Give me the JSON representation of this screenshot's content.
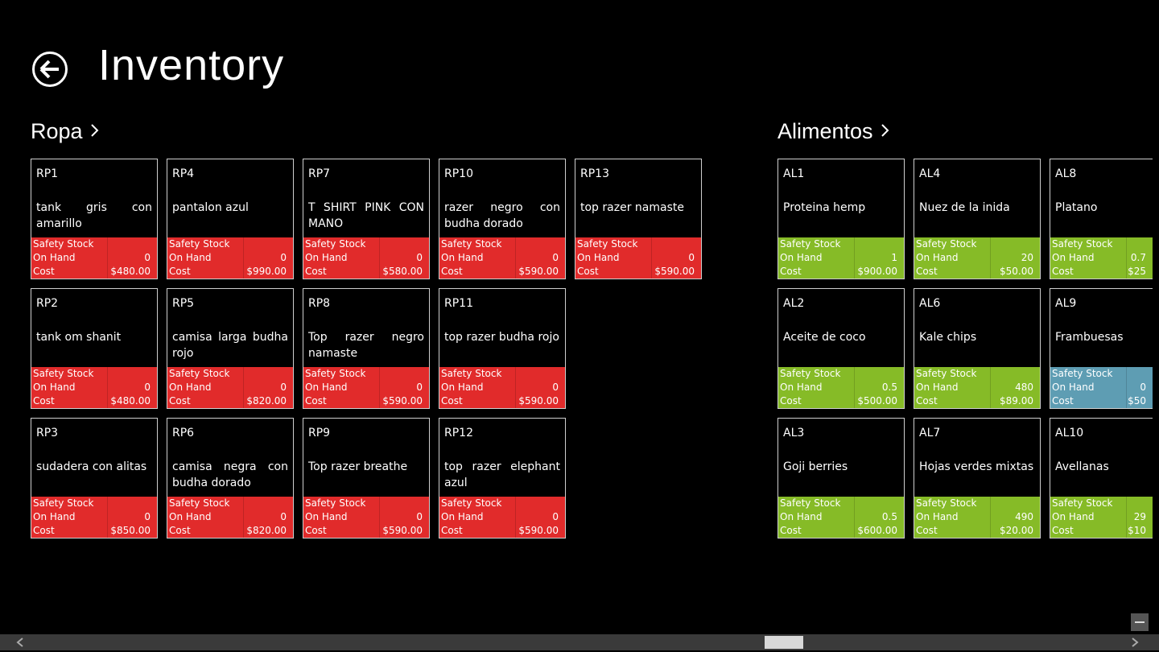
{
  "header": {
    "title": "Inventory"
  },
  "labels": [
    "Safety Stock",
    "On Hand",
    "Cost"
  ],
  "groups": [
    {
      "title": "Ropa",
      "items": [
        {
          "code": "RP1",
          "name": "tank gris con amarillo",
          "on_hand": 0,
          "cost": "$480.00",
          "color": "#e12b2b"
        },
        {
          "code": "RP2",
          "name": "tank om shanit",
          "on_hand": 0,
          "cost": "$480.00",
          "color": "#e12b2b"
        },
        {
          "code": "RP3",
          "name": "sudadera con alitas",
          "on_hand": 0,
          "cost": "$850.00",
          "color": "#e12b2b"
        },
        {
          "code": "RP4",
          "name": "pantalon azul",
          "on_hand": 0,
          "cost": "$990.00",
          "color": "#e12b2b"
        },
        {
          "code": "RP5",
          "name": "camisa larga budha rojo",
          "on_hand": 0,
          "cost": "$820.00",
          "color": "#e12b2b"
        },
        {
          "code": "RP6",
          "name": "camisa negra con budha dorado",
          "on_hand": 0,
          "cost": "$820.00",
          "color": "#e12b2b"
        },
        {
          "code": "RP7",
          "name": "T SHIRT PINK CON MANO",
          "on_hand": 0,
          "cost": "$580.00",
          "color": "#e12b2b"
        },
        {
          "code": "RP8",
          "name": "Top razer negro namaste",
          "on_hand": 0,
          "cost": "$590.00",
          "color": "#e12b2b"
        },
        {
          "code": "RP9",
          "name": "Top razer breathe",
          "on_hand": 0,
          "cost": "$590.00",
          "color": "#e12b2b"
        },
        {
          "code": "RP10",
          "name": "razer negro con budha dorado",
          "on_hand": 0,
          "cost": "$590.00",
          "color": "#e12b2b"
        },
        {
          "code": "RP11",
          "name": "top razer budha rojo",
          "on_hand": 0,
          "cost": "$590.00",
          "color": "#e12b2b"
        },
        {
          "code": "RP12",
          "name": "top razer elephant azul",
          "on_hand": 0,
          "cost": "$590.00",
          "color": "#e12b2b"
        },
        {
          "code": "RP13",
          "name": "top razer namaste",
          "on_hand": 0,
          "cost": "$590.00",
          "color": "#e12b2b"
        }
      ]
    },
    {
      "title": "Alimentos",
      "items": [
        {
          "code": "AL1",
          "name": "Proteina hemp",
          "on_hand": 1,
          "cost": "$900.00",
          "color": "#86bb27"
        },
        {
          "code": "AL2",
          "name": "Aceite de coco",
          "on_hand": 0.5,
          "cost": "$500.00",
          "color": "#86bb27"
        },
        {
          "code": "AL3",
          "name": "Goji berries",
          "on_hand": 0.5,
          "cost": "$600.00",
          "color": "#86bb27"
        },
        {
          "code": "AL4",
          "name": "Nuez de la inida",
          "on_hand": 20,
          "cost": "$50.00",
          "color": "#86bb27"
        },
        {
          "code": "AL6",
          "name": "Kale chips",
          "on_hand": 480,
          "cost": "$89.00",
          "color": "#86bb27"
        },
        {
          "code": "AL7",
          "name": "Hojas verdes mixtas",
          "on_hand": 490,
          "cost": "$20.00",
          "color": "#86bb27"
        },
        {
          "code": "AL8",
          "name": "Platano",
          "on_hand": 0.7,
          "cost": "$25",
          "color": "#86bb27"
        },
        {
          "code": "AL9",
          "name": "Frambuesas",
          "on_hand": 0,
          "cost": "$50",
          "color": "#5e9db3"
        },
        {
          "code": "AL10",
          "name": "Avellanas",
          "on_hand": 29,
          "cost": "$10",
          "color": "#86bb27"
        }
      ]
    }
  ]
}
